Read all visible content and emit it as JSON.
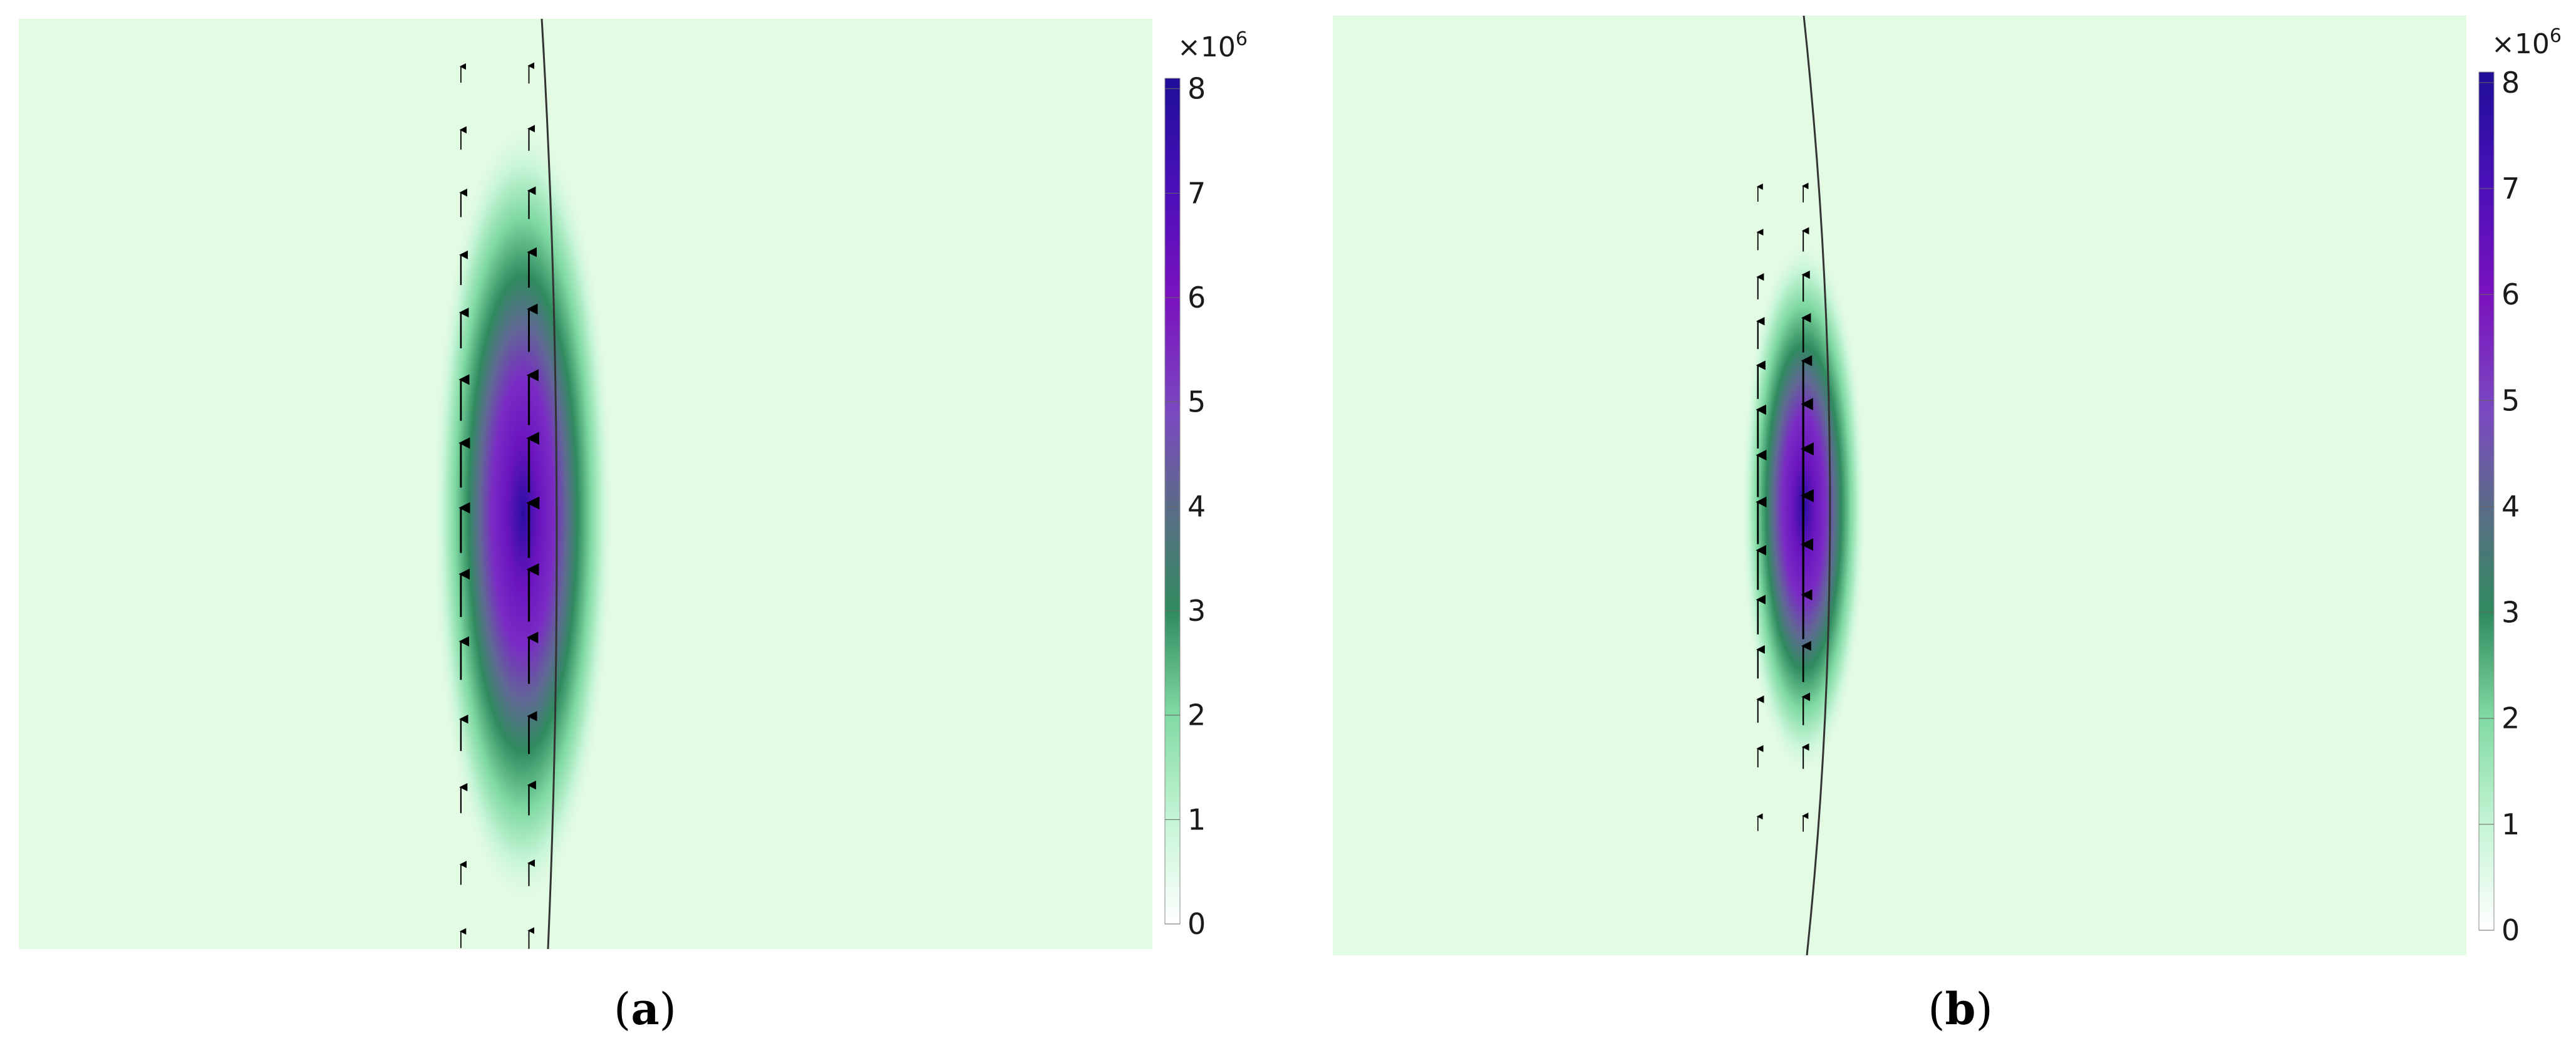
{
  "chart_data": [
    {
      "type": "heatmap",
      "panel_label": "a",
      "colorbar": {
        "exponent_text": "×10",
        "exponent_power": "6",
        "range": [
          0,
          8.1
        ],
        "ticks": [
          0,
          1,
          2,
          3,
          4,
          5,
          6,
          7,
          8
        ],
        "colors": [
          "#ffffff",
          "#c6f5d6",
          "#7fd9a2",
          "#2f8a5e",
          "#5a6c86",
          "#7a4bc0",
          "#7a12be",
          "#4a10b8",
          "#1e0e98"
        ]
      },
      "background_color": "#e3fbe3",
      "field": {
        "x": 0.445,
        "y": 0.53,
        "peak": 8.1,
        "sigma_x": 0.035,
        "sigma_y": 0.24
      },
      "arrow_columns": [
        0.39,
        0.45
      ],
      "arrow_rows": [
        0.06,
        0.13,
        0.2,
        0.27,
        0.335,
        0.41,
        0.48,
        0.55,
        0.62,
        0.69,
        0.77,
        0.84,
        0.92,
        0.99
      ]
    },
    {
      "type": "heatmap",
      "panel_label": "b",
      "colorbar": {
        "exponent_text": "×10",
        "exponent_power": "6",
        "range": [
          0,
          8.1
        ],
        "ticks": [
          0,
          1,
          2,
          3,
          4,
          5,
          6,
          7,
          8
        ],
        "colors": [
          "#ffffff",
          "#c6f5d6",
          "#7fd9a2",
          "#2f8a5e",
          "#5a6c86",
          "#7a4bc0",
          "#7a12be",
          "#4a10b8",
          "#1e0e98"
        ]
      },
      "background_color": "#e3fbe3",
      "field": {
        "x": 0.415,
        "y": 0.52,
        "peak": 8.1,
        "sigma_x": 0.022,
        "sigma_y": 0.16
      },
      "arrow_columns": [
        0.375,
        0.415
      ],
      "arrow_rows": [
        0.19,
        0.24,
        0.29,
        0.34,
        0.39,
        0.44,
        0.49,
        0.54,
        0.59,
        0.64,
        0.69,
        0.74,
        0.79,
        0.86
      ]
    }
  ]
}
